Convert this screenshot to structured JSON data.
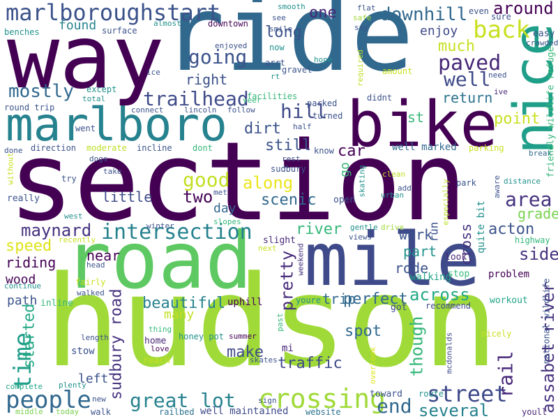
{
  "words": [
    {
      "text": "hudson",
      "color": "#a0da39"
    },
    {
      "text": "section",
      "color": "#440154"
    },
    {
      "text": "ride",
      "color": "#31688e"
    },
    {
      "text": "way",
      "color": "#440154"
    },
    {
      "text": "road",
      "color": "#5ec962"
    },
    {
      "text": "mile",
      "color": "#3e4a89"
    },
    {
      "text": "bike",
      "color": "#440154"
    },
    {
      "text": "nice",
      "color": "#1f9e89"
    },
    {
      "text": "marlboro",
      "color": "#26828e"
    },
    {
      "text": "marlboroughstart",
      "color": "#3b528b"
    },
    {
      "text": "crossing",
      "color": "#a0da39"
    },
    {
      "text": "people",
      "color": "#31688e"
    },
    {
      "text": "great lot",
      "color": "#26828e"
    },
    {
      "text": "intersection",
      "color": "#26828e"
    },
    {
      "text": "trailhead",
      "color": "#3e4a89"
    },
    {
      "text": "street",
      "color": "#3e4a89"
    },
    {
      "text": "back",
      "color": "#c8e020"
    },
    {
      "text": "paved",
      "color": "#482878"
    },
    {
      "text": "time",
      "color": "#1f9e89"
    },
    {
      "text": "sudbury road",
      "color": "#46327e"
    },
    {
      "text": "assabet river",
      "color": "#46327e"
    },
    {
      "text": "rail",
      "color": "#482878"
    },
    {
      "text": "good",
      "color": "#c2df23"
    },
    {
      "text": "hill",
      "color": "#3e4a89"
    },
    {
      "text": "going",
      "color": "#3b528b"
    },
    {
      "text": "mostly",
      "color": "#31688e"
    },
    {
      "text": "maynard",
      "color": "#46327e"
    },
    {
      "text": "area",
      "color": "#46327e"
    },
    {
      "text": "downhill",
      "color": "#31688e"
    },
    {
      "text": "around",
      "color": "#440154"
    },
    {
      "text": "much",
      "color": "#c8e020"
    },
    {
      "text": "well",
      "color": "#3e4a89"
    },
    {
      "text": "end",
      "color": "#31688e"
    },
    {
      "text": "several",
      "color": "#26828e"
    },
    {
      "text": "along",
      "color": "#ebe51a"
    },
    {
      "text": "pretty",
      "color": "#472d7b"
    },
    {
      "text": "started",
      "color": "#22a884"
    },
    {
      "text": "speed",
      "color": "#dde318"
    },
    {
      "text": "riding",
      "color": "#440154"
    },
    {
      "text": "river",
      "color": "#35b779"
    },
    {
      "text": "two",
      "color": "#440154"
    },
    {
      "text": "acton",
      "color": "#3b528b"
    },
    {
      "text": "beautiful",
      "color": "#26828e"
    },
    {
      "text": "perfect",
      "color": "#31688e"
    },
    {
      "text": "across",
      "color": "#22a884"
    },
    {
      "text": "traffic",
      "color": "#3e4a89"
    },
    {
      "text": "though",
      "color": "#35b779"
    },
    {
      "text": "make",
      "color": "#3e4a89"
    },
    {
      "text": "trip",
      "color": "#31688e"
    },
    {
      "text": "spot",
      "color": "#31688e"
    },
    {
      "text": "scenic",
      "color": "#31688e"
    },
    {
      "text": "car",
      "color": "#440154"
    },
    {
      "text": "still",
      "color": "#3b528b"
    },
    {
      "text": "dirt",
      "color": "#3b528b"
    },
    {
      "text": "right",
      "color": "#3b528b"
    },
    {
      "text": "one",
      "color": "#482878"
    },
    {
      "text": "long",
      "color": "#3b528b"
    },
    {
      "text": "return",
      "color": "#2c728e"
    },
    {
      "text": "point",
      "color": "#c8e020"
    },
    {
      "text": "grade",
      "color": "#7ad151"
    },
    {
      "text": "side",
      "color": "#46327e"
    },
    {
      "text": "work",
      "color": "#3b528b"
    },
    {
      "text": "part",
      "color": "#21918c"
    },
    {
      "text": "rode",
      "color": "#3b528b"
    },
    {
      "text": "cross",
      "color": "#46327e"
    },
    {
      "text": "day",
      "color": "#31688e"
    },
    {
      "text": "little",
      "color": "#3e4a89"
    },
    {
      "text": "near",
      "color": "#440154"
    },
    {
      "text": "wood",
      "color": "#440154"
    },
    {
      "text": "path",
      "color": "#3b528b"
    },
    {
      "text": "left",
      "color": "#3b528b"
    },
    {
      "text": "many",
      "color": "#c2df23"
    },
    {
      "text": "found",
      "color": "#26828e"
    },
    {
      "text": "enjoy",
      "color": "#3e4a89"
    },
    {
      "text": "go",
      "color": "#35b779"
    },
    {
      "text": "st",
      "color": "#35b779"
    },
    {
      "text": "run",
      "color": "#3b528b"
    },
    {
      "text": "quite bit",
      "color": "#21918c"
    },
    {
      "text": "well maintained",
      "color": "#3e4a89"
    },
    {
      "text": "well marked",
      "color": "#31688e"
    },
    {
      "text": "walking",
      "color": "#20a486"
    },
    {
      "text": "stow",
      "color": "#3b528b"
    },
    {
      "text": "uphill",
      "color": "#440154"
    },
    {
      "text": "mi",
      "color": "#482878"
    },
    {
      "text": "reach",
      "color": "#c8e020"
    },
    {
      "text": "honey pot",
      "color": "#21918c"
    },
    {
      "text": "home",
      "color": "#482878"
    },
    {
      "text": "park",
      "color": "#3b528b"
    },
    {
      "text": "website",
      "color": "#2c728e"
    },
    {
      "text": "route",
      "color": "#21918c"
    },
    {
      "text": "toward",
      "color": "#3b528b"
    },
    {
      "text": "youll",
      "color": "#482878"
    },
    {
      "text": "sign",
      "color": "#3b528b"
    },
    {
      "text": "walk",
      "color": "#3b528b"
    },
    {
      "text": "railbed",
      "color": "#2c728e"
    },
    {
      "text": "plenty",
      "color": "#21918c"
    },
    {
      "text": "complete",
      "color": "#20a486"
    },
    {
      "text": "middle",
      "color": "#7ad151"
    },
    {
      "text": "today",
      "color": "#7ad151"
    },
    {
      "text": "new",
      "color": "#3b528b"
    },
    {
      "text": "length",
      "color": "#3b528b"
    },
    {
      "text": "thing",
      "color": "#35b779"
    },
    {
      "text": "love",
      "color": "#440154"
    },
    {
      "text": "skates",
      "color": "#3b528b"
    },
    {
      "text": "summer",
      "color": "#440154"
    },
    {
      "text": "past",
      "color": "#35b779"
    },
    {
      "text": "overlook",
      "color": "#dde318"
    },
    {
      "text": "mcdonalds",
      "color": "#3e4a89"
    },
    {
      "text": "nicely",
      "color": "#c8e020"
    },
    {
      "text": "national wildlife",
      "color": "#3b528b"
    },
    {
      "text": "workout",
      "color": "#20a486"
    },
    {
      "text": "problem",
      "color": "#440154"
    },
    {
      "text": "stop",
      "color": "#35b779"
    },
    {
      "text": "look",
      "color": "#482878"
    },
    {
      "text": "recommend",
      "color": "#3e4a89"
    },
    {
      "text": "got",
      "color": "#3e4a89"
    },
    {
      "text": "youre",
      "color": "#21918c"
    },
    {
      "text": "weekend",
      "color": "#46327e"
    },
    {
      "text": "highway",
      "color": "#35b779"
    },
    {
      "text": "distance",
      "color": "#21918c"
    },
    {
      "text": "aware",
      "color": "#3b528b"
    },
    {
      "text": "especially",
      "color": "#bddf26"
    },
    {
      "text": "slight",
      "color": "#482878"
    },
    {
      "text": "gentle",
      "color": "#21918c"
    },
    {
      "text": "drive",
      "color": "#a0da39"
    },
    {
      "text": "views",
      "color": "#3b528b"
    },
    {
      "text": "urban",
      "color": "#21918c"
    },
    {
      "text": "skating",
      "color": "#21918c"
    },
    {
      "text": "add",
      "color": "#3b528b"
    },
    {
      "text": "clean",
      "color": "#bddf26"
    },
    {
      "text": "open",
      "color": "#3b528b"
    },
    {
      "text": "rest",
      "color": "#3b528b"
    },
    {
      "text": "sudbury",
      "color": "#3b528b"
    },
    {
      "text": "know",
      "color": "#3b528b"
    },
    {
      "text": "parking",
      "color": "#c8e020"
    },
    {
      "text": "break",
      "color": "#31688e"
    },
    {
      "text": "friendly wildlife refuge",
      "color": "#35b779"
    },
    {
      "text": "need",
      "color": "#3b528b"
    },
    {
      "text": "ive",
      "color": "#482878"
    },
    {
      "text": "crowded",
      "color": "#3b528b"
    },
    {
      "text": "easy",
      "color": "#3b528b"
    },
    {
      "text": "sure",
      "color": "#3b528b"
    },
    {
      "text": "even",
      "color": "#3b528b"
    },
    {
      "text": "flat",
      "color": "#3b528b"
    },
    {
      "text": "safe",
      "color": "#a0da39"
    },
    {
      "text": "say",
      "color": "#3b528b"
    },
    {
      "text": "smooth",
      "color": "#21918c"
    },
    {
      "text": "see",
      "color": "#3b528b"
    },
    {
      "text": "smile",
      "color": "#3b528b"
    },
    {
      "text": "now",
      "color": "#21918c"
    },
    {
      "text": "downtown",
      "color": "#440154"
    },
    {
      "text": "almost",
      "color": "#21918c"
    },
    {
      "text": "surface",
      "color": "#3b528b"
    },
    {
      "text": "benches",
      "color": "#21918c"
    },
    {
      "text": "enjoyed",
      "color": "#3b528b"
    },
    {
      "text": "ice",
      "color": "#3b528b"
    },
    {
      "text": "arrt",
      "color": "#3b528b"
    },
    {
      "text": "rt",
      "color": "#21918c"
    },
    {
      "text": "gravel",
      "color": "#3b528b"
    },
    {
      "text": "hope",
      "color": "#21918c"
    },
    {
      "text": "required",
      "color": "#bddf26"
    },
    {
      "text": "amount",
      "color": "#c8e020"
    },
    {
      "text": "didnt",
      "color": "#3b528b"
    },
    {
      "text": "facilities",
      "color": "#35b779"
    },
    {
      "text": "parked",
      "color": "#3b528b"
    },
    {
      "text": "veer",
      "color": "#35b779"
    },
    {
      "text": "follow",
      "color": "#3b528b"
    },
    {
      "text": "turned",
      "color": "#3b528b"
    },
    {
      "text": "lincoln",
      "color": "#3b528b"
    },
    {
      "text": "connect",
      "color": "#3b528b"
    },
    {
      "text": "half",
      "color": "#3b528b"
    },
    {
      "text": "except",
      "color": "#21918c"
    },
    {
      "text": "total",
      "color": "#21918c"
    },
    {
      "text": "round trip",
      "color": "#3b528b"
    },
    {
      "text": "went",
      "color": "#3b528b"
    },
    {
      "text": "moderate",
      "color": "#bddf26"
    },
    {
      "text": "incline",
      "color": "#3b528b"
    },
    {
      "text": "dont",
      "color": "#35b779"
    },
    {
      "text": "done",
      "color": "#3b528b"
    },
    {
      "text": "direction",
      "color": "#3b528b"
    },
    {
      "text": "dogs",
      "color": "#3b528b"
    },
    {
      "text": "without",
      "color": "#c8e020"
    },
    {
      "text": "take",
      "color": "#3b528b"
    },
    {
      "text": "try",
      "color": "#3b528b"
    },
    {
      "text": "met",
      "color": "#3b528b"
    },
    {
      "text": "really",
      "color": "#3b528b"
    },
    {
      "text": "west",
      "color": "#21918c"
    },
    {
      "text": "winter",
      "color": "#3b528b"
    },
    {
      "text": "slopes",
      "color": "#35b779"
    },
    {
      "text": "recently",
      "color": "#c8e020"
    },
    {
      "text": "next",
      "color": "#c8e020"
    },
    {
      "text": "head",
      "color": "#3b528b"
    },
    {
      "text": "fairly",
      "color": "#c8e020"
    },
    {
      "text": "continue",
      "color": "#21918c"
    },
    {
      "text": "walked",
      "color": "#3b528b"
    },
    {
      "text": "inline",
      "color": "#35b779"
    }
  ]
}
